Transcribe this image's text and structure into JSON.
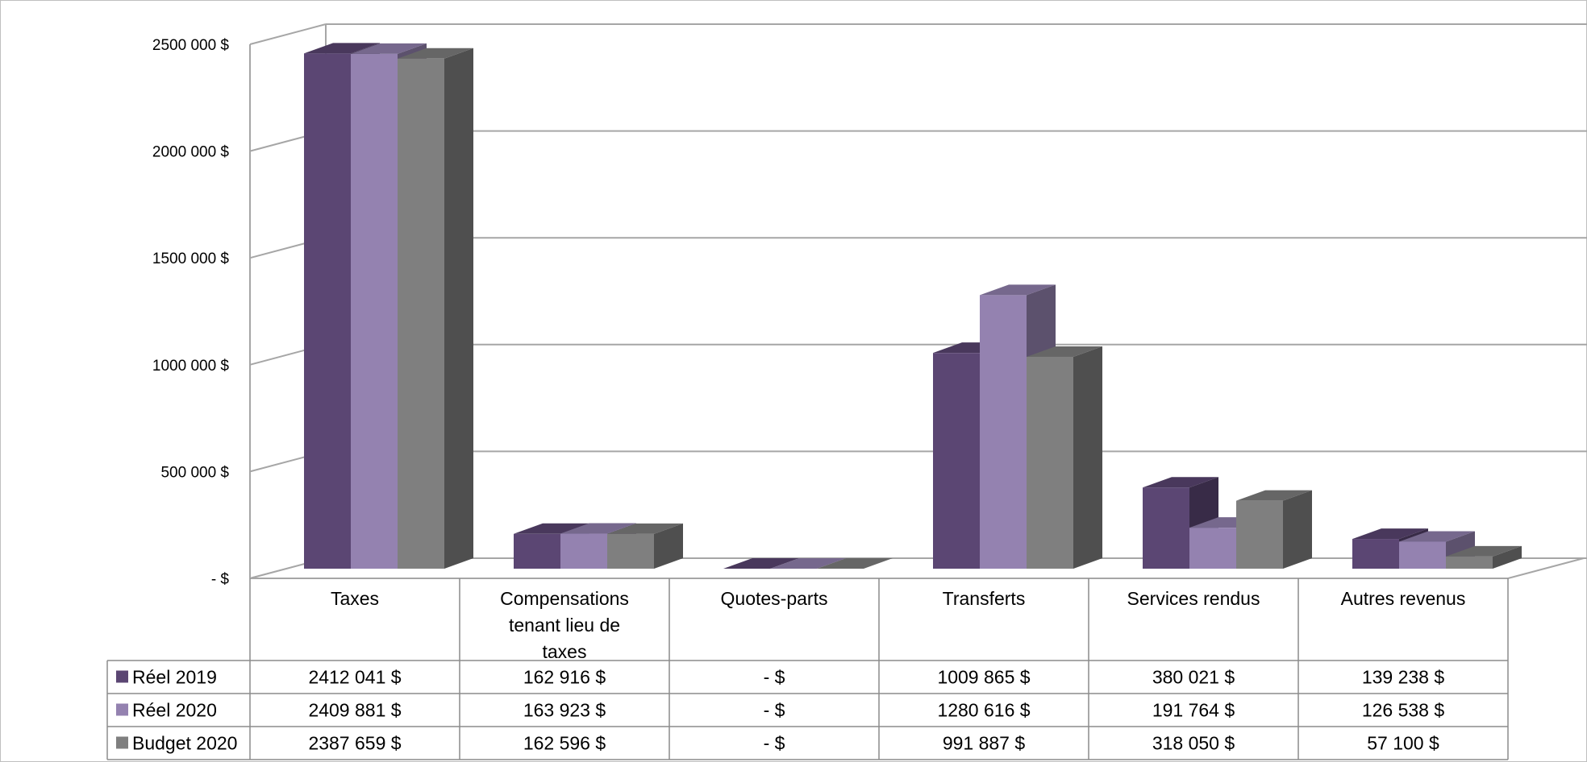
{
  "chart_data": {
    "type": "bar",
    "title": "",
    "xlabel": "",
    "ylabel": "",
    "ylim": [
      0,
      2500000
    ],
    "grid": true,
    "legend": "data-table-left",
    "categories": [
      [
        "Taxes"
      ],
      [
        "Compensations",
        "tenant lieu de",
        "taxes"
      ],
      [
        "Quotes-parts"
      ],
      [
        "Transferts"
      ],
      [
        "Services rendus"
      ],
      [
        "Autres revenus"
      ]
    ],
    "y_ticks": [
      {
        "value": 0,
        "label": "-  $"
      },
      {
        "value": 500000,
        "label": "500 000  $"
      },
      {
        "value": 1000000,
        "label": "1000 000  $"
      },
      {
        "value": 1500000,
        "label": "1500 000  $"
      },
      {
        "value": 2000000,
        "label": "2000 000  $"
      },
      {
        "value": 2500000,
        "label": "2500 000  $"
      }
    ],
    "series": [
      {
        "name": "Réel 2019",
        "color": "#5b4673",
        "values": [
          2412041,
          162916,
          0,
          1009865,
          380021,
          139238
        ],
        "labels": [
          "2412 041  $",
          "162 916  $",
          "-    $",
          "1009 865  $",
          "380 021  $",
          "139 238  $"
        ]
      },
      {
        "name": "Réel 2020",
        "color": "#9482b0",
        "values": [
          2409881,
          163923,
          0,
          1280616,
          191764,
          126538
        ],
        "labels": [
          "2409 881  $",
          "163 923  $",
          "-    $",
          "1280 616  $",
          "191 764  $",
          "126 538  $"
        ]
      },
      {
        "name": "Budget 2020",
        "color": "#7f7f7f",
        "values": [
          2387659,
          162596,
          0,
          991887,
          318050,
          57100
        ],
        "labels": [
          "2387 659  $",
          "162 596  $",
          "-    $",
          "991 887  $",
          "318 050  $",
          "57 100  $"
        ]
      }
    ]
  }
}
